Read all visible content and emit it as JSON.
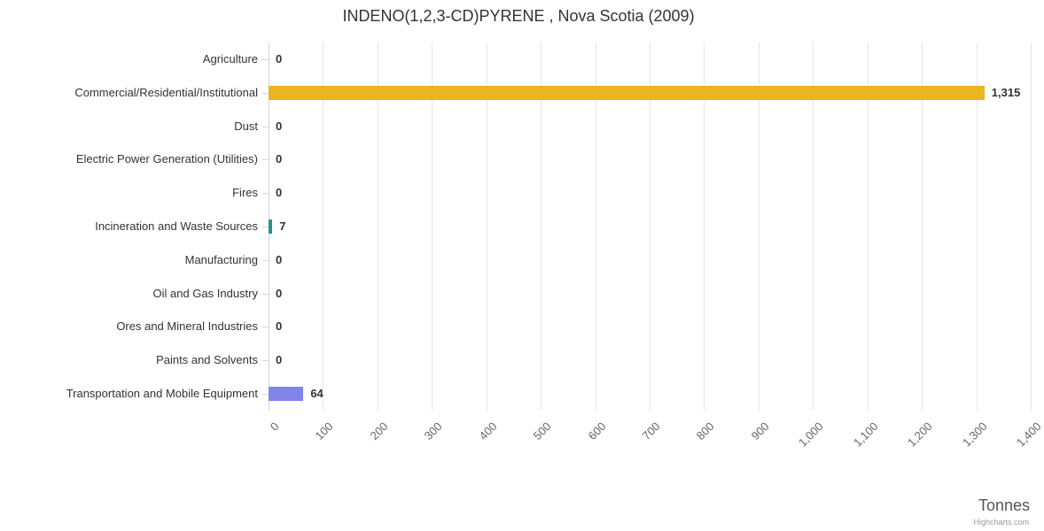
{
  "chart_data": {
    "type": "bar",
    "title": "INDENO(1,2,3-CD)PYRENE , Nova Scotia (2009)",
    "xlabel": "Tonnes",
    "ylabel": "",
    "xlim": [
      0,
      1400
    ],
    "tick_interval": 100,
    "tick_labels": [
      "0",
      "100",
      "200",
      "300",
      "400",
      "500",
      "600",
      "700",
      "800",
      "900",
      "1,000",
      "1,100",
      "1,200",
      "1,300",
      "1,400"
    ],
    "categories": [
      "Agriculture",
      "Commercial/Residential/Institutional",
      "Dust",
      "Electric Power Generation (Utilities)",
      "Fires",
      "Incineration and Waste Sources",
      "Manufacturing",
      "Oil and Gas Industry",
      "Ores and Mineral Industries",
      "Paints and Solvents",
      "Transportation and Mobile Equipment"
    ],
    "values": [
      0,
      1315,
      0,
      0,
      0,
      7,
      0,
      0,
      0,
      0,
      64
    ],
    "value_labels": [
      "0",
      "1,315",
      "0",
      "0",
      "0",
      "7",
      "0",
      "0",
      "0",
      "0",
      "64"
    ],
    "colors": [
      "#7cb5ec",
      "#e9b520",
      "#90ed7d",
      "#f7a35c",
      "#8085e9",
      "#2b908f",
      "#e4d354",
      "#f15c80",
      "#f45b5b",
      "#91e8e1",
      "#8085e9"
    ],
    "grid": true,
    "legend": "none",
    "credit": "Highcharts.com"
  }
}
